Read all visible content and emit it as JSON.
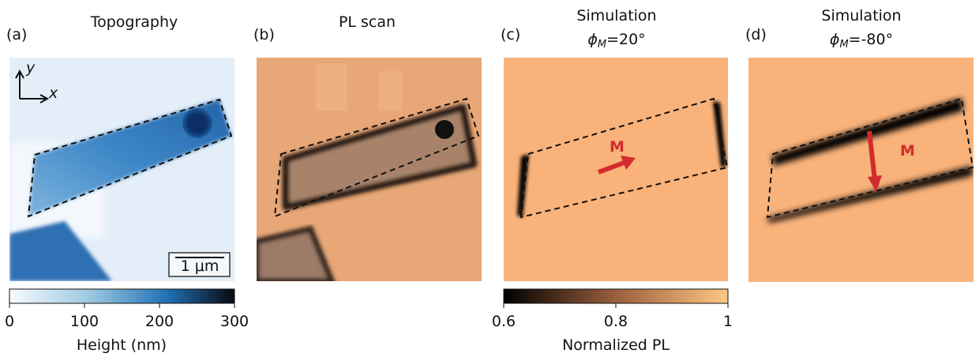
{
  "panels": [
    {
      "label": "(a)",
      "title": "Topography"
    },
    {
      "label": "(b)",
      "title": "PL scan"
    },
    {
      "label": "(c)",
      "title": "Simulation",
      "phi_symbol": "ϕ",
      "phi_index": "M",
      "phi_value": "=20°",
      "arrow_label": "M"
    },
    {
      "label": "(d)",
      "title": "Simulation",
      "phi_symbol": "ϕ",
      "phi_index": "M",
      "phi_value": "=-80°",
      "arrow_label": "M"
    }
  ],
  "axes_labels": {
    "x": "x",
    "y": "y"
  },
  "scale_bar": "1 μm",
  "colorbars": [
    {
      "label": "Height (nm)",
      "lim": [
        0,
        300
      ],
      "ticks": [
        0,
        100,
        200,
        300
      ]
    },
    {
      "label": "Normalized PL",
      "lim": [
        0.6,
        1
      ],
      "ticks": [
        0.6,
        0.8,
        1
      ]
    }
  ]
}
